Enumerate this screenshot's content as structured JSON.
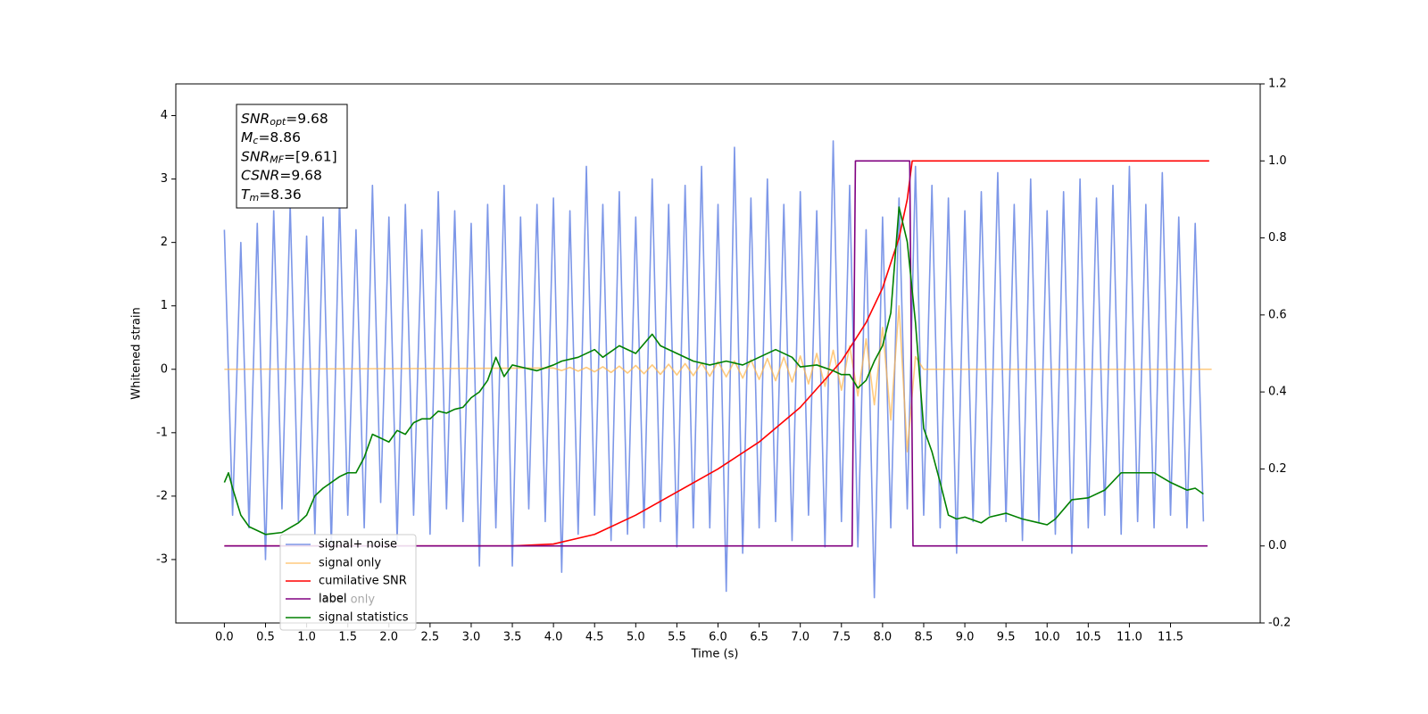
{
  "chart_data": {
    "type": "line",
    "xlabel": "Time (s)",
    "ylabel": "Whitened strain",
    "xlim": [
      -0.59,
      12.59
    ],
    "ylim": [
      -4.0,
      4.5
    ],
    "y2lim": [
      -0.2,
      1.2
    ],
    "xticks": [
      {
        "value": 0,
        "label": "0.0"
      },
      0.5,
      {
        "value": 1,
        "label": "1.0"
      },
      1.5,
      {
        "value": 2,
        "label": "2.0"
      },
      2.5,
      {
        "value": 3,
        "label": "3.0"
      },
      3.5,
      {
        "value": 4,
        "label": "4.0"
      },
      4.5,
      {
        "value": 5,
        "label": "5.0"
      },
      5.5,
      {
        "value": 6,
        "label": "6.0"
      },
      6.5,
      {
        "value": 7,
        "label": "7.0"
      },
      7.5,
      {
        "value": 8,
        "label": "8.0"
      },
      8.5,
      {
        "value": 9,
        "label": "9.0"
      },
      9.5,
      {
        "value": 10,
        "label": "10.0"
      },
      10.5,
      {
        "value": 11,
        "label": "11.0"
      },
      11.5
    ],
    "yticks": [
      -3,
      -2,
      -1,
      0,
      1,
      2,
      3,
      4
    ],
    "y2ticks": [
      -0.2,
      {
        "value": 0,
        "label": "0.0"
      },
      0.2,
      0.4,
      0.6,
      0.8,
      {
        "value": 1,
        "label": "1.0"
      },
      1.2
    ],
    "grid": false,
    "legend": "lower left",
    "legend_hidden_entries": [
      "label only"
    ],
    "annotations": [
      {
        "label": "SNR",
        "subscript": "opt",
        "text": "=9.68"
      },
      {
        "label": "M",
        "subscript": "c",
        "text": "=8.86"
      },
      {
        "label": "SNR",
        "subscript": "MF",
        "text": "=[9.61]"
      },
      {
        "label": "CSNR",
        "subscript": "",
        "text": "=9.68"
      },
      {
        "label": "T",
        "subscript": "m",
        "text": "=8.36"
      }
    ],
    "series": [
      {
        "name": "signal+ noise",
        "color": "#6f8ce6",
        "alpha": 0.9,
        "axis": "y",
        "x": [
          0,
          0.1,
          0.2,
          0.3,
          0.4,
          0.5,
          0.6,
          0.7,
          0.8,
          0.9,
          1,
          1.1,
          1.2,
          1.3,
          1.4,
          1.5,
          1.6,
          1.7,
          1.8,
          1.9,
          2,
          2.1,
          2.2,
          2.3,
          2.4,
          2.5,
          2.6,
          2.7,
          2.8,
          2.9,
          3,
          3.1,
          3.2,
          3.3,
          3.4,
          3.5,
          3.6,
          3.7,
          3.8,
          3.9,
          4,
          4.1,
          4.2,
          4.3,
          4.4,
          4.5,
          4.6,
          4.7,
          4.8,
          4.9,
          5,
          5.1,
          5.2,
          5.3,
          5.4,
          5.5,
          5.6,
          5.7,
          5.8,
          5.9,
          6,
          6.1,
          6.2,
          6.3,
          6.4,
          6.5,
          6.6,
          6.7,
          6.8,
          6.9,
          7,
          7.1,
          7.2,
          7.3,
          7.4,
          7.5,
          7.6,
          7.7,
          7.8,
          7.9,
          8,
          8.1,
          8.2,
          8.3,
          8.4,
          8.5,
          8.6,
          8.7,
          8.8,
          8.9,
          9,
          9.1,
          9.2,
          9.3,
          9.4,
          9.5,
          9.6,
          9.7,
          9.8,
          9.9,
          10,
          10.1,
          10.2,
          10.3,
          10.4,
          10.5,
          10.6,
          10.7,
          10.8,
          10.9,
          11,
          11.1,
          11.2,
          11.3,
          11.4,
          11.5,
          11.6,
          11.7,
          11.8,
          11.9
        ],
        "values": [
          2.2,
          -2.3,
          2.0,
          -2.5,
          2.3,
          -3.0,
          2.5,
          -2.2,
          2.6,
          -2.4,
          2.1,
          -2.6,
          2.4,
          -2.8,
          2.7,
          -2.3,
          2.2,
          -2.5,
          2.9,
          -2.1,
          2.4,
          -2.7,
          2.6,
          -2.3,
          2.2,
          -2.6,
          2.8,
          -2.2,
          2.5,
          -2.4,
          2.3,
          -3.1,
          2.6,
          -2.5,
          2.9,
          -3.1,
          2.4,
          -2.2,
          2.6,
          -2.4,
          2.7,
          -3.2,
          2.5,
          -2.6,
          3.2,
          -2.3,
          2.6,
          -2.7,
          2.8,
          -2.6,
          2.4,
          -2.5,
          3.0,
          -2.4,
          2.6,
          -2.8,
          2.9,
          -2.5,
          3.2,
          -2.5,
          2.6,
          -3.5,
          3.5,
          -2.9,
          2.7,
          -2.5,
          3.0,
          -2.4,
          2.6,
          -2.7,
          2.8,
          -2.3,
          2.5,
          -2.8,
          3.6,
          -2.4,
          2.9,
          -2.8,
          2.2,
          -3.6,
          2.4,
          -2.5,
          2.7,
          -2.2,
          3.2,
          -2.3,
          2.9,
          -2.5,
          2.7,
          -2.9,
          2.5,
          -2.4,
          2.8,
          -2.3,
          3.1,
          -2.4,
          2.6,
          -2.7,
          3.0,
          -2.4,
          2.5,
          -2.6,
          2.8,
          -2.9,
          3.0,
          -2.5,
          2.7,
          -2.3,
          2.9,
          -2.6,
          3.2,
          -2.4,
          2.6,
          -2.5,
          3.1,
          -2.3,
          2.4,
          -2.5,
          2.3,
          -2.4
        ]
      },
      {
        "name": "signal only",
        "color": "#ffb347",
        "alpha": 0.7,
        "axis": "y",
        "x": [
          0,
          4,
          4.1,
          4.2,
          4.3,
          4.4,
          4.5,
          4.6,
          4.7,
          4.8,
          4.9,
          5,
          5.1,
          5.2,
          5.3,
          5.4,
          5.5,
          5.6,
          5.7,
          5.8,
          5.9,
          6,
          6.1,
          6.2,
          6.3,
          6.4,
          6.5,
          6.6,
          6.7,
          6.8,
          6.9,
          7,
          7.1,
          7.2,
          7.3,
          7.4,
          7.5,
          7.6,
          7.7,
          7.8,
          7.9,
          8,
          8.1,
          8.2,
          8.3,
          8.4,
          8.5,
          12
        ],
        "values": [
          0,
          0.02,
          -0.02,
          0.03,
          -0.03,
          0.03,
          -0.04,
          0.04,
          -0.05,
          0.05,
          -0.06,
          0.06,
          -0.07,
          0.07,
          -0.08,
          0.08,
          -0.09,
          0.09,
          -0.1,
          0.1,
          -0.11,
          0.12,
          -0.12,
          0.13,
          -0.14,
          0.15,
          -0.16,
          0.17,
          -0.18,
          0.19,
          -0.2,
          0.21,
          -0.23,
          0.25,
          -0.27,
          0.3,
          -0.33,
          0.37,
          -0.42,
          0.48,
          -0.56,
          0.66,
          -0.8,
          1.0,
          -1.3,
          0.2,
          0,
          0
        ]
      },
      {
        "name": "cumilative SNR",
        "color": "#ff0000",
        "alpha": 1,
        "axis": "y2",
        "x": [
          0,
          3.5,
          4,
          4.5,
          5,
          5.5,
          6,
          6.5,
          7,
          7.5,
          7.8,
          8,
          8.2,
          8.3,
          8.36,
          11.97
        ],
        "values": [
          0,
          0,
          0.005,
          0.03,
          0.08,
          0.14,
          0.2,
          0.27,
          0.36,
          0.48,
          0.58,
          0.67,
          0.8,
          0.9,
          1.0,
          1.0
        ]
      },
      {
        "name": "label",
        "color": "#800080",
        "alpha": 1,
        "axis": "y2",
        "x": [
          0,
          7.63,
          7.67,
          8.33,
          8.37,
          11.95
        ],
        "values": [
          0,
          0,
          1,
          1,
          0,
          0
        ]
      },
      {
        "name": "signal statistics",
        "color": "#008000",
        "alpha": 1,
        "axis": "y2",
        "x": [
          0,
          0.05,
          0.1,
          0.2,
          0.3,
          0.5,
          0.7,
          0.9,
          1,
          1.1,
          1.2,
          1.4,
          1.5,
          1.6,
          1.7,
          1.8,
          1.9,
          2,
          2.1,
          2.2,
          2.3,
          2.4,
          2.5,
          2.6,
          2.7,
          2.8,
          2.9,
          3,
          3.1,
          3.2,
          3.3,
          3.4,
          3.5,
          3.6,
          3.8,
          4,
          4.1,
          4.3,
          4.5,
          4.6,
          4.8,
          5,
          5.2,
          5.3,
          5.5,
          5.7,
          5.9,
          6.1,
          6.3,
          6.5,
          6.7,
          6.9,
          7,
          7.2,
          7.4,
          7.5,
          7.6,
          7.7,
          7.8,
          7.9,
          8,
          8.1,
          8.2,
          8.3,
          8.4,
          8.5,
          8.6,
          8.7,
          8.8,
          8.9,
          9,
          9.2,
          9.3,
          9.5,
          9.7,
          9.9,
          10,
          10.1,
          10.3,
          10.5,
          10.7,
          10.9,
          11.1,
          11.3,
          11.5,
          11.7,
          11.8,
          11.9
        ],
        "values": [
          0.165,
          0.19,
          0.15,
          0.08,
          0.05,
          0.03,
          0.035,
          0.06,
          0.08,
          0.13,
          0.15,
          0.18,
          0.19,
          0.19,
          0.23,
          0.29,
          0.28,
          0.27,
          0.3,
          0.29,
          0.32,
          0.33,
          0.33,
          0.35,
          0.345,
          0.355,
          0.36,
          0.385,
          0.4,
          0.43,
          0.49,
          0.44,
          0.47,
          0.465,
          0.455,
          0.47,
          0.48,
          0.49,
          0.51,
          0.49,
          0.52,
          0.5,
          0.55,
          0.52,
          0.5,
          0.48,
          0.47,
          0.48,
          0.47,
          0.49,
          0.51,
          0.49,
          0.465,
          0.47,
          0.455,
          0.445,
          0.445,
          0.41,
          0.43,
          0.48,
          0.52,
          0.605,
          0.88,
          0.79,
          0.58,
          0.305,
          0.245,
          0.165,
          0.08,
          0.07,
          0.075,
          0.06,
          0.075,
          0.085,
          0.07,
          0.06,
          0.055,
          0.07,
          0.12,
          0.125,
          0.145,
          0.19,
          0.19,
          0.19,
          0.165,
          0.145,
          0.15,
          0.135
        ]
      }
    ]
  }
}
